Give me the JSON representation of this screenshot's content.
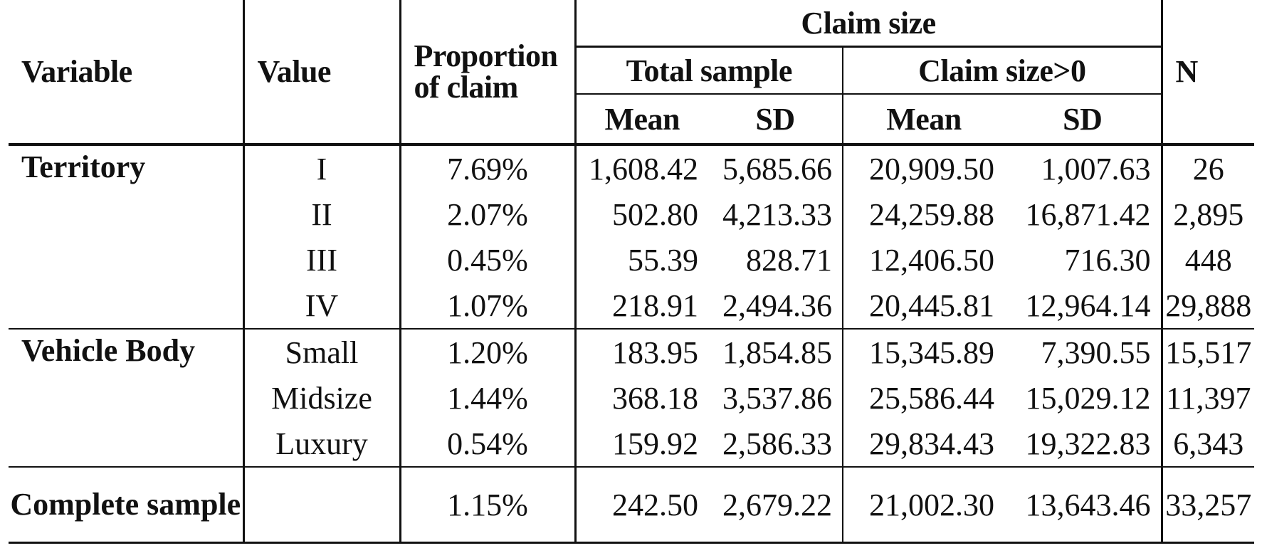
{
  "table": {
    "headers": {
      "variable": "Variable",
      "value": "Value",
      "proportion": "Proportion of claim",
      "claim_size": "Claim size",
      "total_sample": "Total sample",
      "positive_sample": "Claim size>0",
      "n": "N",
      "mean_1": "Mean",
      "sd_1": "SD",
      "mean_2": "Mean",
      "sd_2": "SD"
    },
    "groups": {
      "territory": "Territory",
      "vehicle_body": "Vehicle Body",
      "complete": "Complete sample"
    },
    "rows": [
      {
        "value": "I",
        "proportion": "7.69%",
        "mean": "1,608.42",
        "sd": "5,685.66",
        "mean_pos": "20,909.50",
        "sd_pos": "1,007.63",
        "n": "26"
      },
      {
        "value": "II",
        "proportion": "2.07%",
        "mean": "502.80",
        "sd": "4,213.33",
        "mean_pos": "24,259.88",
        "sd_pos": "16,871.42",
        "n": "2,895"
      },
      {
        "value": "III",
        "proportion": "0.45%",
        "mean": "55.39",
        "sd": "828.71",
        "mean_pos": "12,406.50",
        "sd_pos": "716.30",
        "n": "448"
      },
      {
        "value": "IV",
        "proportion": "1.07%",
        "mean": "218.91",
        "sd": "2,494.36",
        "mean_pos": "20,445.81",
        "sd_pos": "12,964.14",
        "n": "29,888"
      },
      {
        "value": "Small",
        "proportion": "1.20%",
        "mean": "183.95",
        "sd": "1,854.85",
        "mean_pos": "15,345.89",
        "sd_pos": "7,390.55",
        "n": "15,517"
      },
      {
        "value": "Midsize",
        "proportion": "1.44%",
        "mean": "368.18",
        "sd": "3,537.86",
        "mean_pos": "25,586.44",
        "sd_pos": "15,029.12",
        "n": "11,397"
      },
      {
        "value": "Luxury",
        "proportion": "0.54%",
        "mean": "159.92",
        "sd": "2,586.33",
        "mean_pos": "29,834.43",
        "sd_pos": "19,322.83",
        "n": "6,343"
      },
      {
        "value": "",
        "proportion": "1.15%",
        "mean": "242.50",
        "sd": "2,679.22",
        "mean_pos": "21,002.30",
        "sd_pos": "13,643.46",
        "n": "33,257"
      }
    ]
  }
}
